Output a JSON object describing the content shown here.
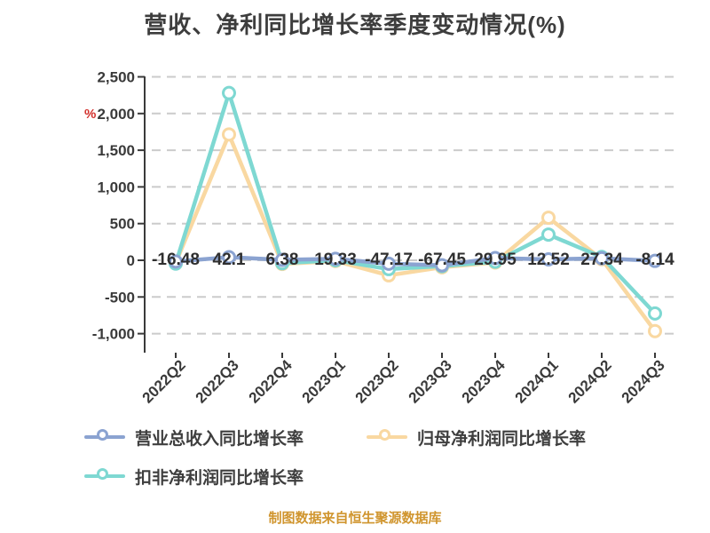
{
  "title": "营收、净利同比增长率季度变动情况(%)",
  "y_axis_unit": "%",
  "footer": "制图数据来自恒生聚源数据库",
  "colors": {
    "title_text": "#3d3d3d",
    "axis_text": "#3a3a3a",
    "axis_line": "#3a3a3a",
    "gridline": "#cbcbcb",
    "data_label_text": "#2f2f2f",
    "unit_label": "#d2302c",
    "footer_text": "#d0952e",
    "background": "#ffffff"
  },
  "chart_data": {
    "type": "line",
    "title": "营收、净利同比增长率季度变动情况(%)",
    "xlabel": "",
    "ylabel": "%",
    "categories": [
      "2022Q2",
      "2022Q3",
      "2022Q4",
      "2023Q1",
      "2023Q2",
      "2023Q3",
      "2023Q4",
      "2024Q1",
      "2024Q2",
      "2024Q3"
    ],
    "series": [
      {
        "key": "revenue-growth",
        "name": "营业总收入同比增长率",
        "color": "#8ba3d1",
        "values": [
          -16.48,
          42.1,
          6.38,
          19.33,
          -47.17,
          -67.45,
          29.95,
          12.52,
          27.34,
          -8.14
        ],
        "labels_shown": true
      },
      {
        "key": "net-profit-growth",
        "name": "归母净利润同比增长率",
        "color": "#f9d8a1",
        "values": [
          -35,
          1715,
          -50,
          -10,
          -205,
          -95,
          -30,
          580,
          15,
          -965
        ],
        "labels_shown": false,
        "note": "values estimated from gridlines"
      },
      {
        "key": "non-gaap-profit-growth",
        "name": "扣非净利润同比增长率",
        "color": "#7ed8d2",
        "values": [
          -45,
          2280,
          -40,
          0,
          -120,
          -80,
          -20,
          350,
          45,
          -725
        ],
        "labels_shown": false,
        "note": "values estimated from gridlines"
      }
    ],
    "data_labels": [
      "-16.48",
      "42.1",
      "6.38",
      "19.33",
      "-47.17",
      "-67.45",
      "29.95",
      "12.52",
      "27.34",
      "-8.14"
    ],
    "y_ticks": [
      2500,
      2000,
      1500,
      1000,
      500,
      0,
      -500,
      -1000
    ],
    "y_tick_labels": [
      "2,500",
      "2,000",
      "1,500",
      "1,000",
      "500",
      "0",
      "-500",
      "-1,000"
    ],
    "ylim": [
      -1250,
      2500
    ],
    "grid": "horizontal-dashed",
    "legend_position": "bottom-left"
  }
}
